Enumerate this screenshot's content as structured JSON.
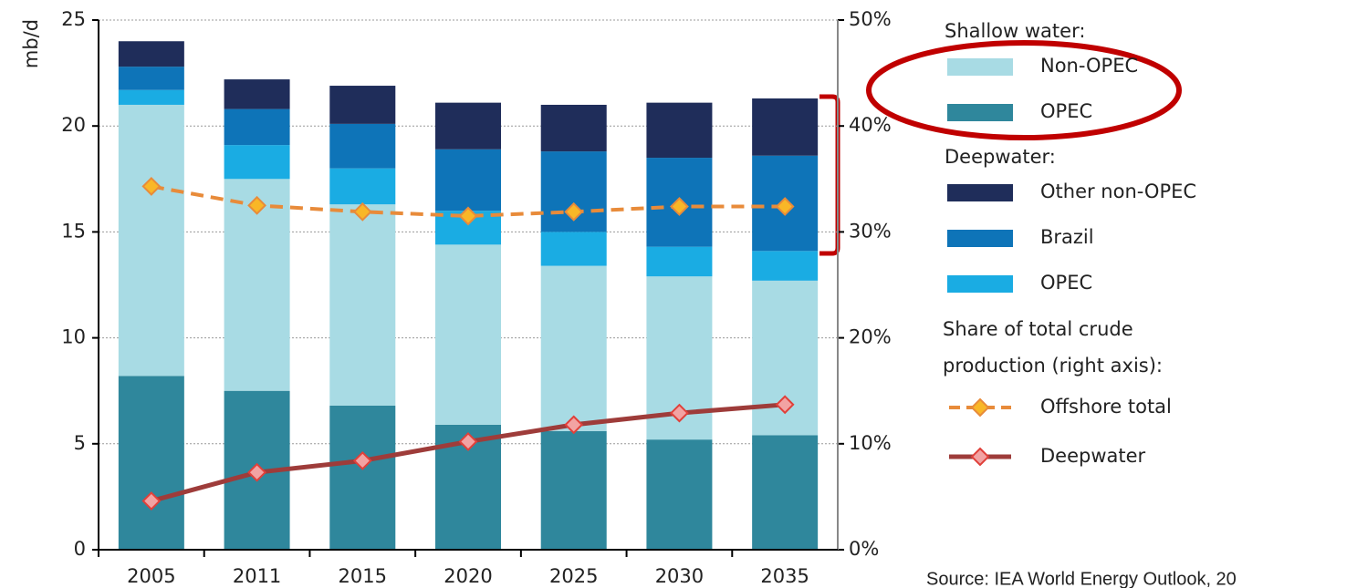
{
  "chart_data": {
    "type": "bar",
    "stacked": true,
    "y_label": "mb/d",
    "categories": [
      "2005",
      "2011",
      "2015",
      "2020",
      "2025",
      "2030",
      "2035"
    ],
    "ylim": [
      0,
      25
    ],
    "yticks": [
      0,
      5,
      10,
      15,
      20,
      25
    ],
    "y2lim": [
      0,
      50
    ],
    "y2ticks": [
      {
        "value": 0,
        "label": "0%"
      },
      {
        "value": 10,
        "label": "10%"
      },
      {
        "value": 20,
        "label": "20%"
      },
      {
        "value": 30,
        "label": "30%"
      },
      {
        "value": 40,
        "label": "40%"
      },
      {
        "value": 50,
        "label": "50%"
      }
    ],
    "grid": true,
    "series": [
      {
        "name": "OPEC",
        "group": "Shallow water:",
        "color": "#2f879c",
        "values": [
          8.2,
          7.5,
          6.8,
          5.9,
          5.6,
          5.2,
          5.4
        ]
      },
      {
        "name": "Non-OPEC",
        "group": "Shallow water:",
        "color": "#a8dbe4",
        "values": [
          12.8,
          10.0,
          9.5,
          8.5,
          7.8,
          7.7,
          7.3
        ]
      },
      {
        "name": "OPEC",
        "group": "Deepwater:",
        "color": "#1aace3",
        "values": [
          0.7,
          1.6,
          1.7,
          1.6,
          1.6,
          1.4,
          1.4
        ]
      },
      {
        "name": "Brazil",
        "group": "Deepwater:",
        "color": "#0e74b8",
        "values": [
          1.1,
          1.7,
          2.1,
          2.9,
          3.8,
          4.2,
          4.5
        ]
      },
      {
        "name": "Other non-OPEC",
        "group": "Deepwater:",
        "color": "#1f2d5a",
        "values": [
          1.2,
          1.4,
          1.8,
          2.2,
          2.2,
          2.6,
          2.7
        ]
      },
      {
        "name": "Offshore total",
        "group": "Share of total crude production (right axis):",
        "type": "line",
        "axis": "y2",
        "dashed": true,
        "color": "#e88b3a",
        "marker_color": "#f9b727",
        "values": [
          34.3,
          32.5,
          31.9,
          31.5,
          31.9,
          32.4,
          32.4
        ]
      },
      {
        "name": "Deepwater",
        "group": "Share of total crude production (right axis):",
        "type": "line",
        "axis": "y2",
        "dashed": false,
        "color": "#9e3c3a",
        "marker_color": "#f2a3a3",
        "marker_stroke": "#e0403a",
        "values": [
          4.6,
          7.3,
          8.4,
          10.2,
          11.8,
          12.9,
          13.7
        ]
      }
    ],
    "source": "Source: IEA World Energy Outlook, 20"
  }
}
